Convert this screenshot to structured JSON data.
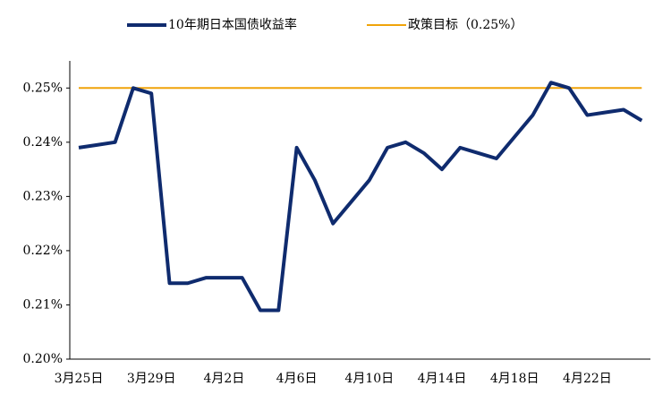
{
  "chart_data": {
    "type": "line",
    "categories": [
      "3月25日",
      null,
      null,
      null,
      "3月29日",
      null,
      null,
      null,
      "4月2日",
      null,
      null,
      null,
      "4月6日",
      null,
      null,
      null,
      "4月10日",
      null,
      null,
      null,
      "4月14日",
      null,
      null,
      null,
      "4月18日",
      null,
      null,
      null,
      "4月22日",
      null,
      null,
      null
    ],
    "series": [
      {
        "name": "10年期日本国债收益率",
        "color": "#0f2b6e",
        "values": [
          0.239,
          0.2395,
          0.24,
          0.25,
          0.249,
          0.214,
          0.214,
          0.215,
          0.215,
          0.215,
          0.209,
          0.209,
          0.239,
          0.233,
          0.225,
          0.229,
          0.233,
          0.239,
          0.24,
          0.238,
          0.235,
          0.239,
          0.238,
          0.237,
          0.241,
          0.245,
          0.251,
          0.25,
          0.245,
          0.2455,
          0.246,
          0.244
        ]
      },
      {
        "name": "政策目标（0.25%）",
        "color": "#f0a30a",
        "values": [
          0.25,
          0.25,
          0.25,
          0.25,
          0.25,
          0.25,
          0.25,
          0.25,
          0.25,
          0.25,
          0.25,
          0.25,
          0.25,
          0.25,
          0.25,
          0.25,
          0.25,
          0.25,
          0.25,
          0.25,
          0.25,
          0.25,
          0.25,
          0.25,
          0.25,
          0.25,
          0.25,
          0.25,
          0.25,
          0.25,
          0.25,
          0.25
        ]
      }
    ],
    "ylim": [
      0.2,
      0.255
    ],
    "yticks": [
      {
        "value": 0.2,
        "label": "0.20%"
      },
      {
        "value": 0.21,
        "label": "0.21%"
      },
      {
        "value": 0.22,
        "label": "0.22%"
      },
      {
        "value": 0.23,
        "label": "0.23%"
      },
      {
        "value": 0.24,
        "label": "0.24%"
      },
      {
        "value": 0.25,
        "label": "0.25%"
      }
    ],
    "legend": "top"
  }
}
